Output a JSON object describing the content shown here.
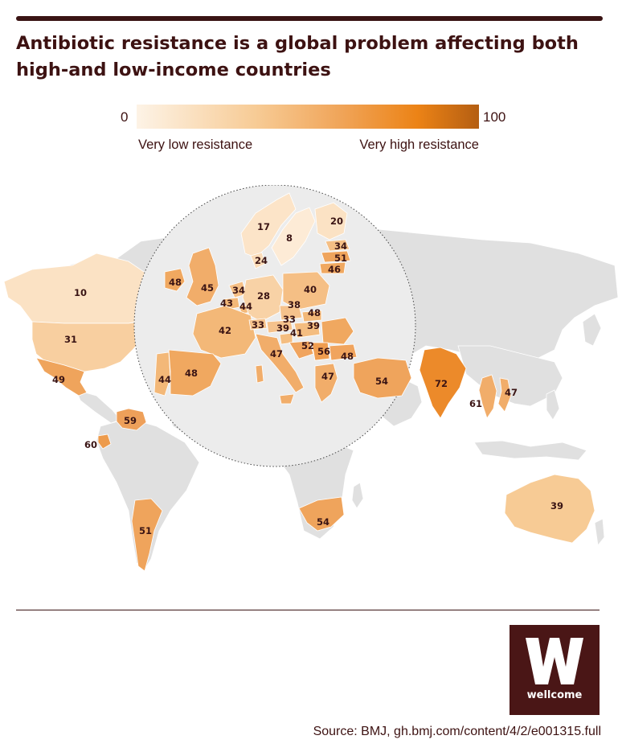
{
  "title": "Antibiotic resistance is a global problem affecting both high-and low-income countries",
  "legend": {
    "min": "0",
    "max": "100",
    "low_label": "Very low resistance",
    "high_label": "Very high resistance",
    "colors": [
      "#fdf3e6",
      "#f7cb95",
      "#f0a458",
      "#ec8316",
      "#b45e12"
    ]
  },
  "map_data": {
    "type": "choropleth",
    "scale": [
      0,
      100
    ],
    "inset": "Europe (circular zoom)",
    "labels": [
      {
        "value": "10"
      },
      {
        "value": "31"
      },
      {
        "value": "49"
      },
      {
        "value": "59"
      },
      {
        "value": "60"
      },
      {
        "value": "51"
      },
      {
        "value": "54"
      },
      {
        "value": "72"
      },
      {
        "value": "61"
      },
      {
        "value": "47"
      },
      {
        "value": "39"
      },
      {
        "value": "17"
      },
      {
        "value": "8"
      },
      {
        "value": "20"
      },
      {
        "value": "34"
      },
      {
        "value": "51"
      },
      {
        "value": "46"
      },
      {
        "value": "24"
      },
      {
        "value": "48"
      },
      {
        "value": "45"
      },
      {
        "value": "34"
      },
      {
        "value": "43"
      },
      {
        "value": "44"
      },
      {
        "value": "28"
      },
      {
        "value": "40"
      },
      {
        "value": "38"
      },
      {
        "value": "48"
      },
      {
        "value": "33"
      },
      {
        "value": "39"
      },
      {
        "value": "42"
      },
      {
        "value": "33"
      },
      {
        "value": "39"
      },
      {
        "value": "41"
      },
      {
        "value": "52"
      },
      {
        "value": "56"
      },
      {
        "value": "48"
      },
      {
        "value": "47"
      },
      {
        "value": "44"
      },
      {
        "value": "48"
      },
      {
        "value": "47"
      },
      {
        "value": "54"
      }
    ]
  },
  "logo": {
    "letter": "W",
    "text": "wellcome"
  },
  "source": "Source: BMJ, gh.bmj.com/content/4/2/e001315.full"
}
